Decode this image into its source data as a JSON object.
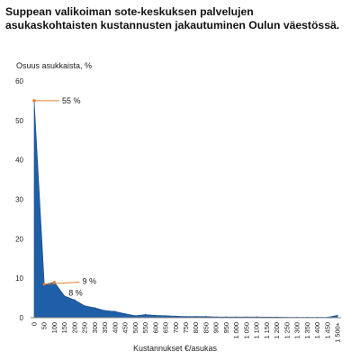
{
  "chart_data": {
    "type": "area",
    "title": "Suppean valikoiman sote-keskuksen palvelujen asukaskohtaisten kustannusten jakautuminen Oulun väestössä.",
    "ylabel": "Osuus asukkaista, %",
    "xlabel": "Kustannukset €/asukas",
    "ylim": [
      0,
      60
    ],
    "yticks": [
      0,
      10,
      20,
      30,
      40,
      50,
      60
    ],
    "grid": false,
    "legend": "none",
    "color": "#1f5fa8",
    "x": [
      "0",
      "50",
      "100",
      "150",
      "200",
      "250",
      "300",
      "350",
      "400",
      "450",
      "500",
      "550",
      "600",
      "650",
      "700",
      "750",
      "800",
      "850",
      "900",
      "950",
      "1 000",
      "1 050",
      "1 100",
      "1 150",
      "1 200",
      "1 250",
      "1 300",
      "1 350",
      "1 400",
      "1 450",
      "1 500+"
    ],
    "values": [
      55,
      8.5,
      9,
      5.5,
      4.5,
      3,
      2.5,
      1.8,
      1.6,
      1.0,
      0.5,
      0.8,
      0.6,
      0.5,
      0.4,
      0.3,
      0.3,
      0.3,
      0.2,
      0.2,
      0.2,
      0.2,
      0.2,
      0.15,
      0.15,
      0.1,
      0.1,
      0.1,
      0.1,
      0.1,
      0.6
    ],
    "annotations": [
      {
        "text": "55 %",
        "x": "0",
        "y": 55
      },
      {
        "text": "8 %",
        "x": "50",
        "y": 8.5
      },
      {
        "text": "9 %",
        "x": "100",
        "y": 9
      }
    ]
  }
}
